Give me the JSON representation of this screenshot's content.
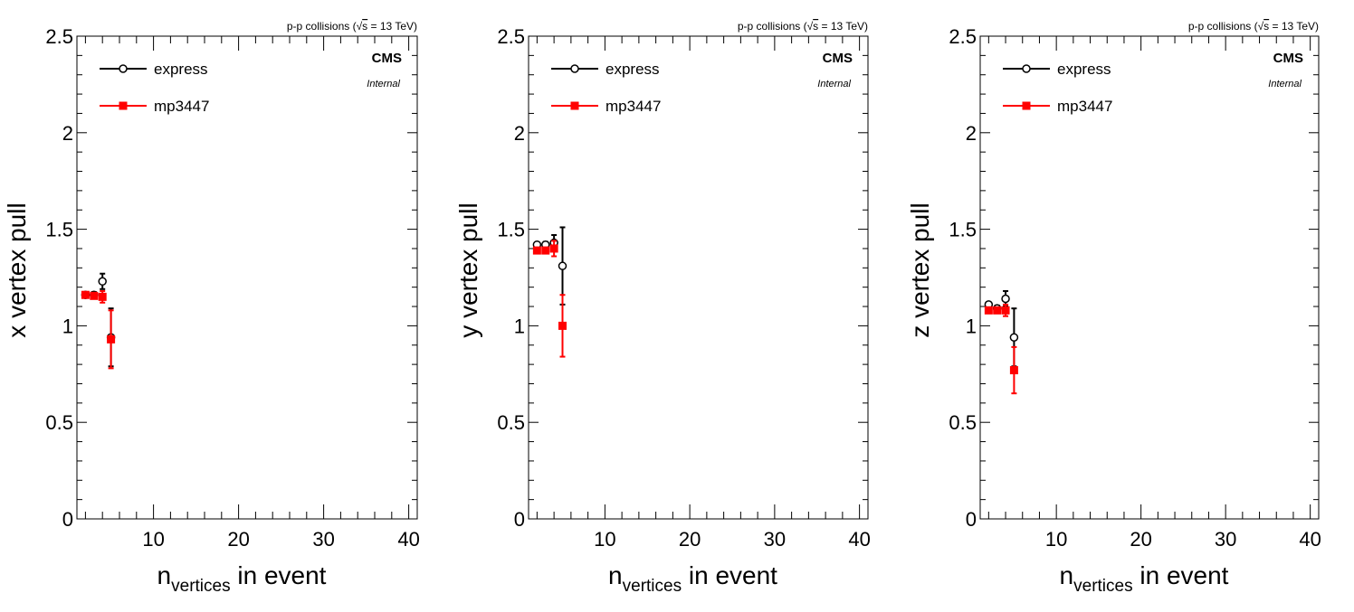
{
  "chart_data": [
    {
      "type": "scatter",
      "header": "p-p collisions (",
      "energy": "s",
      "energy_value": " = 13 TeV)",
      "cms_label": "CMS",
      "status_label": "Internal",
      "ylabel": "x vertex pull",
      "xlabel_n": "n",
      "xlabel_sub": "vertices",
      "xlabel_rest": " in event",
      "xlim": [
        1,
        41
      ],
      "ylim": [
        0,
        2.5
      ],
      "x_ticks": [
        "10",
        "20",
        "30",
        "40"
      ],
      "y_ticks": [
        "0",
        "0.5",
        "1",
        "1.5",
        "2",
        "2.5"
      ],
      "grid": false,
      "legend_position": "top-left",
      "series": [
        {
          "name": "express",
          "color": "#000000",
          "marker": "open-circle",
          "points": [
            {
              "x": 2.0,
              "y": 1.16,
              "err": 0.01
            },
            {
              "x": 3.0,
              "y": 1.16,
              "err": 0.015
            },
            {
              "x": 4.0,
              "y": 1.23,
              "err": 0.04
            },
            {
              "x": 5.0,
              "y": 0.94,
              "err": 0.15
            }
          ]
        },
        {
          "name": "mp3447",
          "color": "#ff0000",
          "marker": "filled-square",
          "points": [
            {
              "x": 2.0,
              "y": 1.16,
              "err": 0.01
            },
            {
              "x": 3.0,
              "y": 1.155,
              "err": 0.015
            },
            {
              "x": 4.0,
              "y": 1.15,
              "err": 0.03
            },
            {
              "x": 5.0,
              "y": 0.93,
              "err": 0.15
            }
          ]
        }
      ]
    },
    {
      "type": "scatter",
      "header": "p-p collisions (",
      "energy": "s",
      "energy_value": " = 13 TeV)",
      "cms_label": "CMS",
      "status_label": "Internal",
      "ylabel": "y vertex pull",
      "xlabel_n": "n",
      "xlabel_sub": "vertices",
      "xlabel_rest": " in event",
      "xlim": [
        1,
        41
      ],
      "ylim": [
        0,
        2.5
      ],
      "x_ticks": [
        "10",
        "20",
        "30",
        "40"
      ],
      "y_ticks": [
        "0",
        "0.5",
        "1",
        "1.5",
        "2",
        "2.5"
      ],
      "grid": false,
      "legend_position": "top-left",
      "series": [
        {
          "name": "express",
          "color": "#000000",
          "marker": "open-circle",
          "points": [
            {
              "x": 2.0,
              "y": 1.42,
              "err": 0.01
            },
            {
              "x": 3.0,
              "y": 1.42,
              "err": 0.015
            },
            {
              "x": 4.0,
              "y": 1.43,
              "err": 0.04
            },
            {
              "x": 5.0,
              "y": 1.31,
              "err": 0.2
            }
          ]
        },
        {
          "name": "mp3447",
          "color": "#ff0000",
          "marker": "filled-square",
          "points": [
            {
              "x": 2.0,
              "y": 1.39,
              "err": 0.01
            },
            {
              "x": 3.0,
              "y": 1.39,
              "err": 0.015
            },
            {
              "x": 4.0,
              "y": 1.4,
              "err": 0.04
            },
            {
              "x": 5.0,
              "y": 1.0,
              "err": 0.16
            }
          ]
        }
      ]
    },
    {
      "type": "scatter",
      "header": "p-p collisions (",
      "energy": "s",
      "energy_value": " = 13 TeV)",
      "cms_label": "CMS",
      "status_label": "Internal",
      "ylabel": "z vertex pull",
      "xlabel_n": "n",
      "xlabel_sub": "vertices",
      "xlabel_rest": " in event",
      "xlim": [
        1,
        41
      ],
      "ylim": [
        0,
        2.5
      ],
      "x_ticks": [
        "10",
        "20",
        "30",
        "40"
      ],
      "y_ticks": [
        "0",
        "0.5",
        "1",
        "1.5",
        "2",
        "2.5"
      ],
      "grid": false,
      "legend_position": "top-left",
      "series": [
        {
          "name": "express",
          "color": "#000000",
          "marker": "open-circle",
          "points": [
            {
              "x": 2.0,
              "y": 1.11,
              "err": 0.01
            },
            {
              "x": 3.0,
              "y": 1.09,
              "err": 0.015
            },
            {
              "x": 4.0,
              "y": 1.14,
              "err": 0.04
            },
            {
              "x": 5.0,
              "y": 0.94,
              "err": 0.15
            }
          ]
        },
        {
          "name": "mp3447",
          "color": "#ff0000",
          "marker": "filled-square",
          "points": [
            {
              "x": 2.0,
              "y": 1.08,
              "err": 0.01
            },
            {
              "x": 3.0,
              "y": 1.08,
              "err": 0.015
            },
            {
              "x": 4.0,
              "y": 1.08,
              "err": 0.03
            },
            {
              "x": 5.0,
              "y": 0.77,
              "err": 0.12
            }
          ]
        }
      ]
    }
  ]
}
